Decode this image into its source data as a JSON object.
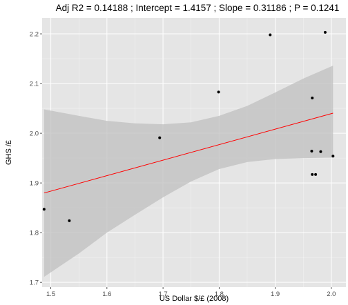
{
  "chart_data": {
    "type": "scatter",
    "title": "Adj R2 =  0.14188 ; Intercept = 1.4157 ; Slope = 0.31186 ; P = 0.1241",
    "xlabel": "US Dollar $/£ (2008)",
    "ylabel": "GHS /£",
    "xlim": [
      1.4845,
      2.026
    ],
    "ylim": [
      1.6905,
      2.232
    ],
    "x_ticks": [
      1.5,
      1.6,
      1.7,
      1.8,
      1.9,
      2.0
    ],
    "x_tick_labels": [
      "1.5",
      "1.6",
      "1.7",
      "1.8",
      "1.9",
      "2.0"
    ],
    "y_ticks": [
      1.7,
      1.8,
      1.9,
      2.0,
      2.1,
      2.2
    ],
    "y_tick_labels": [
      "1.7",
      "1.8",
      "1.9",
      "2.0",
      "2.1",
      "2.2"
    ],
    "grid": true,
    "background_color": "#e5e5e5",
    "grid_color": "#ffffff",
    "point_color": "#000000",
    "fit_line_color": "#ff0000",
    "confidence_band_color": "#bfbfbf",
    "points": [
      {
        "x": 1.488,
        "y": 1.847
      },
      {
        "x": 1.533,
        "y": 1.824
      },
      {
        "x": 1.694,
        "y": 1.991
      },
      {
        "x": 1.799,
        "y": 2.083
      },
      {
        "x": 1.891,
        "y": 2.198
      },
      {
        "x": 1.965,
        "y": 1.964
      },
      {
        "x": 1.966,
        "y": 2.071
      },
      {
        "x": 1.966,
        "y": 1.917
      },
      {
        "x": 1.972,
        "y": 1.917
      },
      {
        "x": 1.981,
        "y": 1.963
      },
      {
        "x": 1.989,
        "y": 2.203
      },
      {
        "x": 2.003,
        "y": 1.954
      }
    ],
    "fit": {
      "x_start": 1.488,
      "x_end": 2.003,
      "intercept": 1.4157,
      "slope": 0.31186
    },
    "confidence_band": [
      {
        "x": 1.488,
        "lo": 1.711,
        "hi": 2.048
      },
      {
        "x": 1.55,
        "lo": 1.758,
        "hi": 2.035
      },
      {
        "x": 1.6,
        "lo": 1.8,
        "hi": 2.025
      },
      {
        "x": 1.65,
        "lo": 1.836,
        "hi": 2.02
      },
      {
        "x": 1.7,
        "lo": 1.871,
        "hi": 2.018
      },
      {
        "x": 1.75,
        "lo": 1.903,
        "hi": 2.022
      },
      {
        "x": 1.8,
        "lo": 1.928,
        "hi": 2.035
      },
      {
        "x": 1.85,
        "lo": 1.942,
        "hi": 2.055
      },
      {
        "x": 1.9,
        "lo": 1.948,
        "hi": 2.082
      },
      {
        "x": 1.95,
        "lo": 1.95,
        "hi": 2.11
      },
      {
        "x": 2.003,
        "lo": 1.951,
        "hi": 2.136
      }
    ]
  }
}
